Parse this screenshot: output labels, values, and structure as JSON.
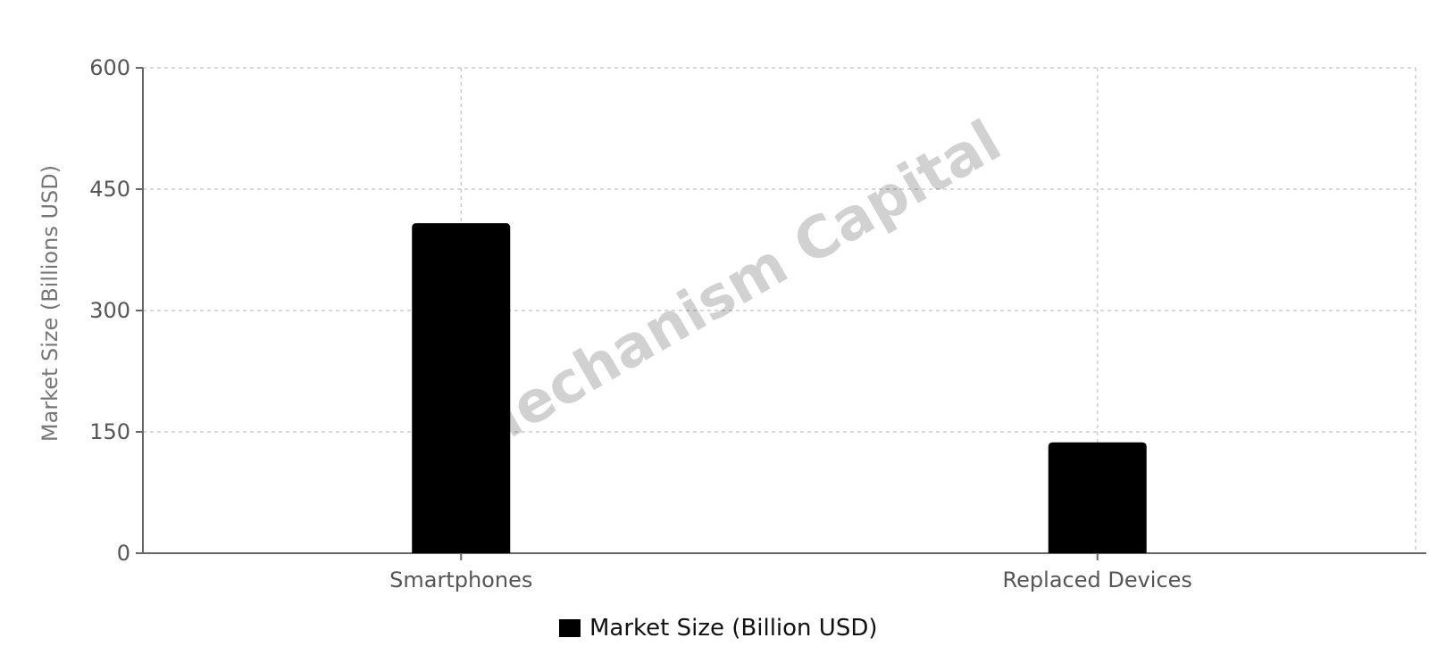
{
  "chart_data": {
    "type": "bar",
    "categories": [
      "Smartphones",
      "Replaced Devices"
    ],
    "series": [
      {
        "name": "Market Size (Billion USD)",
        "values": [
          408,
          137
        ],
        "color": "#000000"
      }
    ],
    "title": "",
    "xlabel": "",
    "ylabel": "Market Size (Billions USD)",
    "ylim": [
      0,
      600
    ],
    "yticks": [
      0,
      150,
      300,
      450,
      600
    ],
    "grid": true,
    "legend_position": "bottom-center",
    "watermark": "Mechanism Capital"
  }
}
